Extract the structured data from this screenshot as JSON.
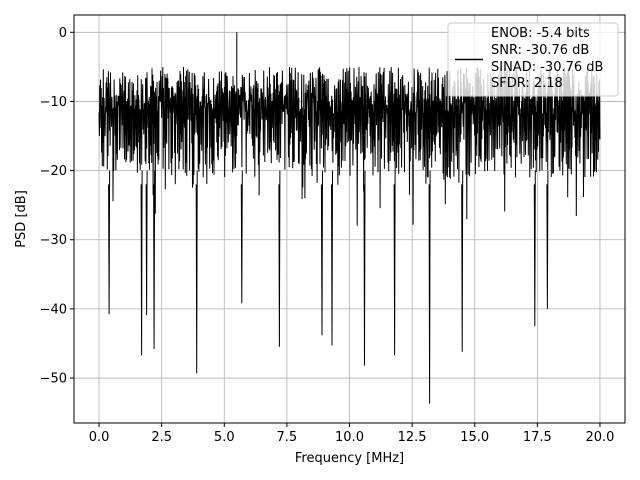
{
  "chart_data": {
    "type": "line",
    "title": "",
    "xlabel": "Frequency [MHz]",
    "ylabel": "PSD [dB]",
    "xlim": [
      -1.0,
      21.0
    ],
    "ylim": [
      -56.5,
      2.5
    ],
    "x_ticks": [
      0.0,
      2.5,
      5.0,
      7.5,
      10.0,
      12.5,
      15.0,
      17.5,
      20.0
    ],
    "x_tick_labels": [
      "0.0",
      "2.5",
      "5.0",
      "7.5",
      "10.0",
      "12.5",
      "15.0",
      "17.5",
      "20.0"
    ],
    "y_ticks": [
      0,
      -10,
      -20,
      -30,
      -40,
      -50
    ],
    "y_tick_labels": [
      "0",
      "−10",
      "−20",
      "−30",
      "−40",
      "−50"
    ],
    "grid": true,
    "legend_position": "top-right",
    "legend_lines": [
      "ENOB: -5.4 bits",
      "SNR: -30.76 dB",
      "SINAD: -30.76 dB",
      "SFDR: 2.18"
    ],
    "series_color": "#000000",
    "x_range": [
      0.0,
      20.0
    ],
    "envelope": {
      "typical_top": -5,
      "typical_bottom": -27,
      "max_peak": {
        "x": 5.5,
        "y": 0.0
      }
    },
    "notable_dips": [
      {
        "x": 0.4,
        "y": -40.8
      },
      {
        "x": 1.7,
        "y": -46.7
      },
      {
        "x": 1.9,
        "y": -40.9
      },
      {
        "x": 2.2,
        "y": -45.8
      },
      {
        "x": 3.9,
        "y": -49.3
      },
      {
        "x": 5.7,
        "y": -39.2
      },
      {
        "x": 7.2,
        "y": -45.5
      },
      {
        "x": 8.9,
        "y": -43.8
      },
      {
        "x": 9.3,
        "y": -45.3
      },
      {
        "x": 10.6,
        "y": -48.2
      },
      {
        "x": 11.8,
        "y": -46.7
      },
      {
        "x": 13.2,
        "y": -53.7
      },
      {
        "x": 14.5,
        "y": -46.2
      },
      {
        "x": 17.4,
        "y": -42.5
      },
      {
        "x": 17.9,
        "y": -40.0
      }
    ]
  }
}
